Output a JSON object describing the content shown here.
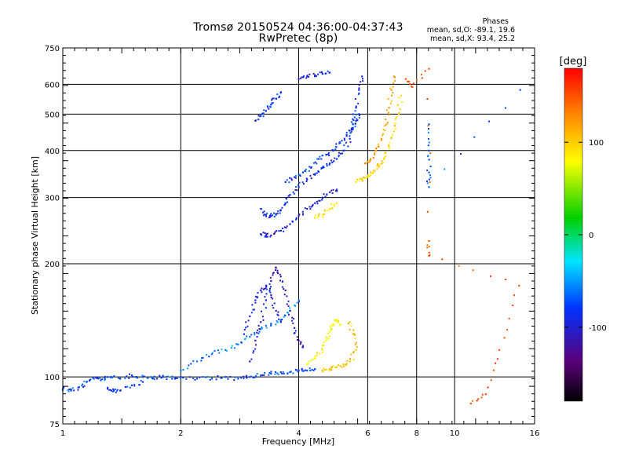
{
  "title_line1": "Tromsø 20150524 04:36:00-04:37:43",
  "title_line2": "RwPretec (8p)",
  "phase_heading": "Phases",
  "phase_o": "mean, sd,O: -89.1, 19.6",
  "phase_x": "mean, sd,X:  93.4, 25.2",
  "chart_data": {
    "type": "scatter",
    "xlabel": "Frequency [MHz]",
    "ylabel": "Stationary phase Virtual Height [km]",
    "xscale": "log",
    "yscale": "log",
    "xlim": [
      1,
      16
    ],
    "ylim": [
      75,
      750
    ],
    "xticks": [
      1,
      2,
      4,
      6,
      8,
      10,
      16
    ],
    "yticks": [
      75,
      100,
      200,
      300,
      400,
      500,
      600,
      750
    ],
    "x_gridlines": [
      2,
      4,
      6,
      8,
      10
    ],
    "y_gridlines": [
      100,
      200,
      300,
      400,
      500,
      600
    ],
    "grid": true,
    "colorbar": {
      "label": "[deg]",
      "range": [
        -180,
        180
      ],
      "ticks": [
        100,
        0,
        -100
      ],
      "colormap": "rainbow (black-purple-blue-cyan-green-yellow-red)"
    },
    "traces": [
      {
        "name": "",
        "phase_deg": -95,
        "points": [
          [
            1.0,
            93
          ],
          [
            1.05,
            92
          ],
          [
            1.1,
            94
          ],
          [
            1.15,
            97
          ],
          [
            1.2,
            99
          ],
          [
            1.25,
            98
          ],
          [
            1.3,
            100
          ],
          [
            1.4,
            99
          ],
          [
            1.5,
            101
          ],
          [
            1.6,
            100
          ],
          [
            1.7,
            99
          ],
          [
            1.8,
            100
          ],
          [
            1.9,
            99
          ],
          [
            2.0,
            100
          ],
          [
            2.2,
            99
          ],
          [
            2.4,
            99
          ],
          [
            2.6,
            100
          ],
          [
            2.8,
            99
          ],
          [
            3.0,
            100
          ],
          [
            3.2,
            101
          ],
          [
            3.4,
            102
          ],
          [
            3.6,
            103
          ],
          [
            3.8,
            103
          ],
          [
            4.0,
            104
          ],
          [
            4.2,
            104
          ],
          [
            4.4,
            105
          ]
        ]
      },
      {
        "name": "",
        "phase_deg": -100,
        "points": [
          [
            1.3,
            93
          ],
          [
            1.35,
            92
          ],
          [
            1.4,
            92
          ],
          [
            1.5,
            95
          ],
          [
            1.6,
            97
          ]
        ]
      },
      {
        "name": "",
        "phase_deg": -80,
        "points": [
          [
            2.0,
            104
          ],
          [
            2.2,
            110
          ],
          [
            2.4,
            115
          ],
          [
            2.6,
            118
          ],
          [
            2.8,
            122
          ],
          [
            3.0,
            128
          ],
          [
            3.2,
            134
          ],
          [
            3.4,
            138
          ],
          [
            3.6,
            142
          ],
          [
            3.8,
            150
          ],
          [
            4.0,
            160
          ]
        ]
      },
      {
        "name": "",
        "phase_deg": -120,
        "points": [
          [
            3.0,
            110
          ],
          [
            3.1,
            125
          ],
          [
            3.2,
            140
          ],
          [
            3.3,
            160
          ],
          [
            3.4,
            180
          ],
          [
            3.5,
            195
          ],
          [
            3.6,
            185
          ],
          [
            3.7,
            170
          ],
          [
            3.8,
            150
          ],
          [
            3.9,
            135
          ],
          [
            4.0,
            125
          ],
          [
            4.1,
            120
          ]
        ]
      },
      {
        "name": "",
        "phase_deg": -110,
        "points": [
          [
            2.9,
            130
          ],
          [
            3.0,
            145
          ],
          [
            3.1,
            160
          ],
          [
            3.2,
            170
          ],
          [
            3.3,
            175
          ],
          [
            3.4,
            165
          ],
          [
            3.5,
            150
          ],
          [
            3.6,
            140
          ]
        ]
      },
      {
        "name": "",
        "phase_deg": 80,
        "points": [
          [
            4.2,
            108
          ],
          [
            4.4,
            112
          ],
          [
            4.6,
            118
          ],
          [
            4.7,
            125
          ],
          [
            4.8,
            132
          ],
          [
            4.9,
            138
          ],
          [
            5.0,
            142
          ],
          [
            5.1,
            138
          ]
        ]
      },
      {
        "name": "",
        "phase_deg": 105,
        "points": [
          [
            4.6,
            104
          ],
          [
            4.8,
            105
          ],
          [
            5.0,
            106
          ],
          [
            5.2,
            108
          ],
          [
            5.4,
            110
          ],
          [
            5.6,
            118
          ],
          [
            5.5,
            130
          ],
          [
            5.4,
            140
          ]
        ]
      },
      {
        "name": "",
        "phase_deg": -115,
        "points": [
          [
            3.2,
            240
          ],
          [
            3.3,
            238
          ],
          [
            3.4,
            238
          ],
          [
            3.6,
            245
          ],
          [
            3.8,
            255
          ],
          [
            4.0,
            268
          ],
          [
            4.2,
            280
          ],
          [
            4.4,
            290
          ],
          [
            4.6,
            300
          ],
          [
            4.8,
            310
          ],
          [
            5.0,
            315
          ]
        ]
      },
      {
        "name": "",
        "phase_deg": -105,
        "points": [
          [
            3.2,
            280
          ],
          [
            3.3,
            270
          ],
          [
            3.4,
            268
          ],
          [
            3.5,
            270
          ],
          [
            3.6,
            278
          ],
          [
            3.7,
            290
          ],
          [
            3.8,
            305
          ],
          [
            4.0,
            320
          ],
          [
            4.2,
            335
          ],
          [
            4.4,
            345
          ],
          [
            4.6,
            360
          ],
          [
            4.8,
            370
          ],
          [
            5.0,
            380
          ],
          [
            5.2,
            400
          ],
          [
            5.4,
            430
          ],
          [
            5.5,
            470
          ],
          [
            5.6,
            520
          ],
          [
            5.7,
            580
          ],
          [
            5.8,
            630
          ]
        ]
      },
      {
        "name": "",
        "phase_deg": -100,
        "points": [
          [
            3.7,
            330
          ],
          [
            3.9,
            340
          ],
          [
            4.1,
            350
          ],
          [
            4.3,
            360
          ],
          [
            4.5,
            380
          ],
          [
            4.7,
            390
          ],
          [
            4.9,
            400
          ],
          [
            5.1,
            420
          ],
          [
            5.3,
            440
          ],
          [
            5.5,
            460
          ],
          [
            5.6,
            480
          ],
          [
            5.7,
            500
          ]
        ]
      },
      {
        "name": "",
        "phase_deg": 95,
        "points": [
          [
            5.6,
            330
          ],
          [
            5.8,
            335
          ],
          [
            6.0,
            340
          ],
          [
            6.2,
            350
          ],
          [
            6.4,
            365
          ],
          [
            6.6,
            380
          ],
          [
            6.8,
            410
          ],
          [
            7.0,
            450
          ],
          [
            7.2,
            500
          ],
          [
            7.3,
            560
          ]
        ]
      },
      {
        "name": "",
        "phase_deg": 120,
        "points": [
          [
            5.9,
            370
          ],
          [
            6.1,
            380
          ],
          [
            6.3,
            400
          ],
          [
            6.5,
            430
          ],
          [
            6.7,
            470
          ],
          [
            6.8,
            520
          ],
          [
            6.9,
            580
          ],
          [
            7.0,
            630
          ]
        ]
      },
      {
        "name": "",
        "phase_deg": 90,
        "points": [
          [
            4.4,
            265
          ],
          [
            4.6,
            270
          ],
          [
            4.8,
            280
          ],
          [
            5.0,
            290
          ]
        ]
      },
      {
        "name": "",
        "phase_deg": -105,
        "points": [
          [
            3.1,
            480
          ],
          [
            3.2,
            495
          ],
          [
            3.3,
            510
          ],
          [
            3.4,
            530
          ],
          [
            3.5,
            550
          ],
          [
            3.6,
            570
          ]
        ]
      },
      {
        "name": "",
        "phase_deg": -110,
        "points": [
          [
            4.0,
            620
          ],
          [
            4.2,
            630
          ],
          [
            4.4,
            635
          ],
          [
            4.6,
            640
          ],
          [
            4.8,
            645
          ]
        ]
      },
      {
        "name": "",
        "phase_deg": 150,
        "points": [
          [
            7.5,
            620
          ],
          [
            7.8,
            590
          ],
          [
            8.6,
            660
          ],
          [
            8.6,
            230
          ],
          [
            8.6,
            210
          ],
          [
            14.6,
            175
          ],
          [
            13.0,
            118
          ],
          [
            12.0,
            90
          ],
          [
            11.0,
            85
          ]
        ]
      },
      {
        "name": "",
        "phase_deg": -90,
        "points": [
          [
            8.6,
            470
          ],
          [
            8.6,
            400
          ],
          [
            8.6,
            350
          ],
          [
            8.6,
            320
          ],
          [
            14.7,
            580
          ]
        ]
      }
    ]
  }
}
